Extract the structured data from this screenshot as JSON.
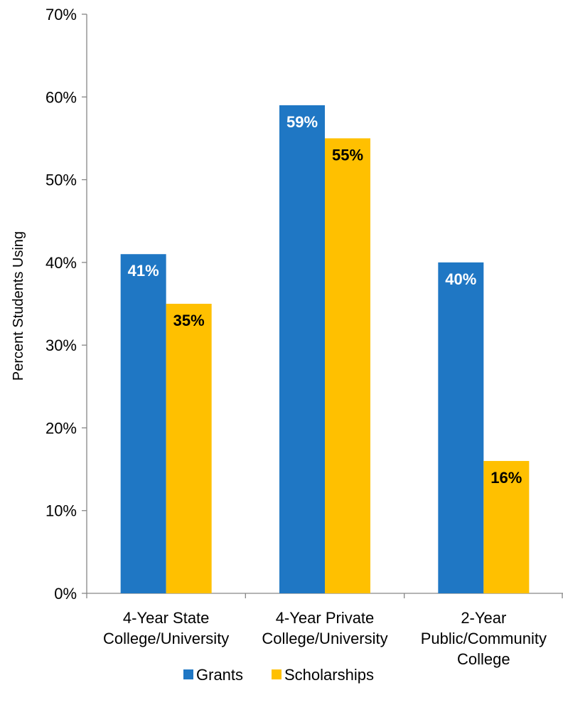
{
  "chart_data": {
    "type": "bar",
    "categories": [
      [
        "4-Year State",
        "College/University"
      ],
      [
        "4-Year Private",
        "College/University"
      ],
      [
        "2-Year",
        "Public/Community",
        "College"
      ]
    ],
    "series": [
      {
        "name": "Grants",
        "color": "#1f77c4",
        "label_color": "#ffffff",
        "values": [
          41,
          59,
          40
        ],
        "labels": [
          "41%",
          "59%",
          "40%"
        ]
      },
      {
        "name": "Scholarships",
        "color": "#ffc000",
        "label_color": "#000000",
        "values": [
          35,
          55,
          16
        ],
        "labels": [
          "35%",
          "55%",
          "16%"
        ]
      }
    ],
    "ylabel": "Percent Students Using",
    "ylim": [
      0,
      70
    ],
    "yticks": [
      0,
      10,
      20,
      30,
      40,
      50,
      60,
      70
    ],
    "ytick_labels": [
      "0%",
      "10%",
      "20%",
      "30%",
      "40%",
      "50%",
      "60%",
      "70%"
    ],
    "grid": false,
    "legend_position": "bottom"
  }
}
